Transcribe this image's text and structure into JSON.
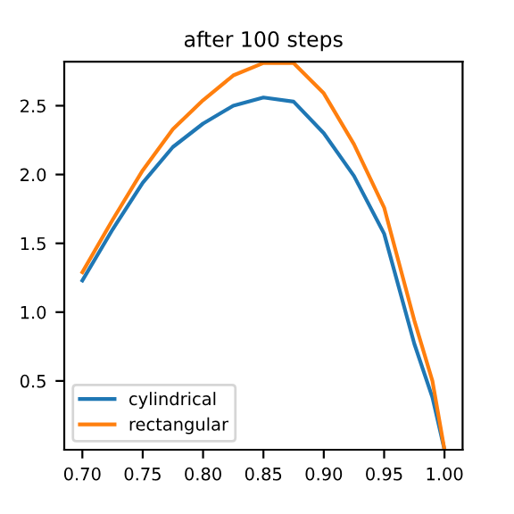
{
  "chart_data": {
    "type": "line",
    "title": "after 100 steps",
    "xlim": [
      0.685,
      1.015
    ],
    "ylim": [
      0.0,
      2.82
    ],
    "xticks": [
      {
        "value": 0.7,
        "label": "0.70"
      },
      {
        "value": 0.75,
        "label": "0.75"
      },
      {
        "value": 0.8,
        "label": "0.80"
      },
      {
        "value": 0.85,
        "label": "0.85"
      },
      {
        "value": 0.9,
        "label": "0.90"
      },
      {
        "value": 0.95,
        "label": "0.95"
      },
      {
        "value": 1.0,
        "label": "1.00"
      }
    ],
    "yticks": [
      0.5,
      {
        "value": 1.0,
        "label": "1.0"
      },
      1.5,
      {
        "value": 2.0,
        "label": "2.0"
      },
      2.5
    ],
    "legend": "bottom left",
    "grid": false,
    "x": [
      0.7,
      0.725,
      0.75,
      0.775,
      0.8,
      0.825,
      0.85,
      0.875,
      0.9,
      0.925,
      0.95,
      0.975,
      0.99,
      1.0
    ],
    "series": [
      {
        "name": "cylindrical",
        "color": "#1f77b4",
        "values": [
          1.23,
          1.6,
          1.94,
          2.2,
          2.37,
          2.5,
          2.56,
          2.53,
          2.3,
          1.99,
          1.57,
          0.77,
          0.38,
          0.0
        ]
      },
      {
        "name": "rectangular",
        "color": "#ff7f0e",
        "values": [
          1.29,
          1.67,
          2.03,
          2.33,
          2.54,
          2.72,
          2.81,
          2.81,
          2.59,
          2.22,
          1.76,
          0.94,
          0.5,
          0.0
        ]
      }
    ]
  }
}
